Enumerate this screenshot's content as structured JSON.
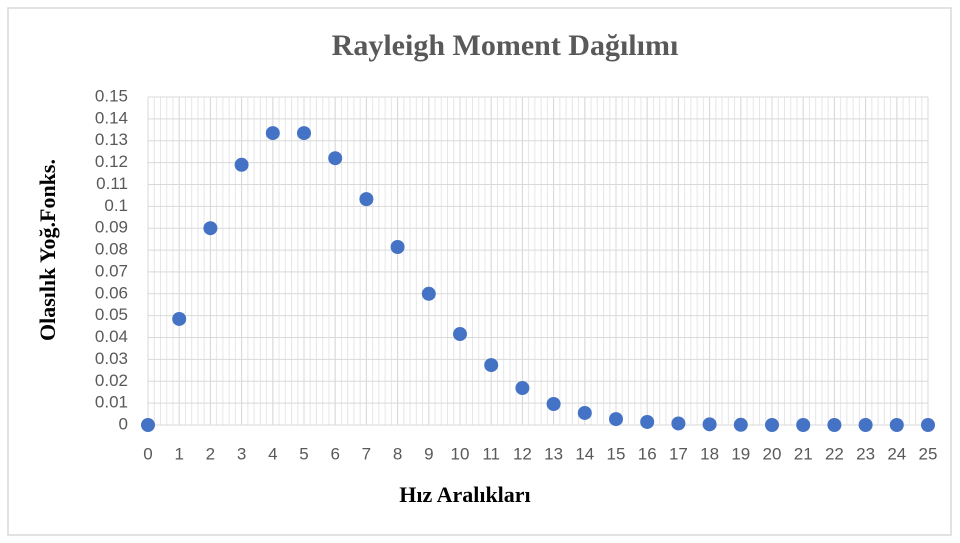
{
  "chart_data": {
    "type": "scatter",
    "title": "Rayleigh Moment Dağılımı",
    "xlabel": "Hız Aralıkları",
    "ylabel": "Olasılık  Yoğ.Fonks.",
    "color": "#4472c4",
    "grid": true,
    "x": [
      0,
      1,
      2,
      3,
      4,
      5,
      6,
      7,
      8,
      9,
      10,
      11,
      12,
      13,
      14,
      15,
      16,
      17,
      18,
      19,
      20,
      21,
      22,
      23,
      24,
      25
    ],
    "values": [
      0,
      0.0485,
      0.09,
      0.119,
      0.1335,
      0.1335,
      0.122,
      0.1033,
      0.0814,
      0.06,
      0.0416,
      0.0274,
      0.0169,
      0.0096,
      0.0055,
      0.0027,
      0.0014,
      0.0007,
      0.0003,
      0.0001,
      0,
      0,
      0,
      0,
      0,
      0
    ],
    "xlim": [
      0,
      25
    ],
    "xticks": [
      0,
      1,
      2,
      3,
      4,
      5,
      6,
      7,
      8,
      9,
      10,
      11,
      12,
      13,
      14,
      15,
      16,
      17,
      18,
      19,
      20,
      21,
      22,
      23,
      24,
      25
    ],
    "ylim": [
      0,
      0.15
    ],
    "yticks": [
      0,
      0.01,
      0.02,
      0.03,
      0.04,
      0.05,
      0.06,
      0.07,
      0.08,
      0.09,
      0.1,
      0.11,
      0.12,
      0.13,
      0.14,
      0.15
    ]
  }
}
